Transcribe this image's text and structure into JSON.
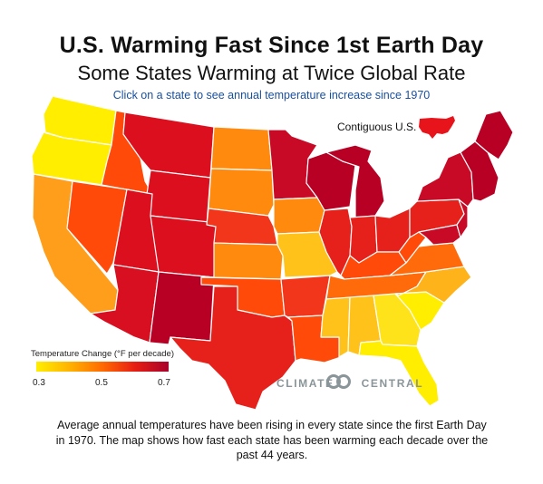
{
  "header": {
    "title": "U.S. Warming Fast Since 1st Earth Day",
    "subtitle": "Some States Warming at Twice Global Rate",
    "instruction": "Click on a state to see annual temperature increase since 1970"
  },
  "map": {
    "inset_label": "Contiguous U.S.",
    "inset_color": "#e8141c",
    "states": [
      {
        "id": "WA",
        "color": "#ffee00"
      },
      {
        "id": "OR",
        "color": "#ffee00"
      },
      {
        "id": "CA",
        "color": "#ff9e1a"
      },
      {
        "id": "ID",
        "color": "#ff4a0a"
      },
      {
        "id": "NV",
        "color": "#ff4a0a"
      },
      {
        "id": "MT",
        "color": "#dc0f1f"
      },
      {
        "id": "WY",
        "color": "#dc0f1f"
      },
      {
        "id": "UT",
        "color": "#dc0f1f"
      },
      {
        "id": "AZ",
        "color": "#d70f20"
      },
      {
        "id": "CO",
        "color": "#dc0f1f"
      },
      {
        "id": "NM",
        "color": "#b70024"
      },
      {
        "id": "ND",
        "color": "#ff8a0d"
      },
      {
        "id": "SD",
        "color": "#ff8a0d"
      },
      {
        "id": "NE",
        "color": "#f2361c"
      },
      {
        "id": "KS",
        "color": "#ff8a0d"
      },
      {
        "id": "OK",
        "color": "#ff4a0a"
      },
      {
        "id": "TX",
        "color": "#e6201a"
      },
      {
        "id": "MN",
        "color": "#c80a26"
      },
      {
        "id": "IA",
        "color": "#ff8a0d"
      },
      {
        "id": "MO",
        "color": "#ffc21a"
      },
      {
        "id": "AR",
        "color": "#f2361c"
      },
      {
        "id": "LA",
        "color": "#ff4a0a"
      },
      {
        "id": "WI",
        "color": "#b70024"
      },
      {
        "id": "IL",
        "color": "#e6201a"
      },
      {
        "id": "MI",
        "color": "#b70024"
      },
      {
        "id": "IN",
        "color": "#e6201a"
      },
      {
        "id": "OH",
        "color": "#e6201a"
      },
      {
        "id": "KY",
        "color": "#ff4a0a"
      },
      {
        "id": "TN",
        "color": "#ff6a0a"
      },
      {
        "id": "MS",
        "color": "#ffc21a"
      },
      {
        "id": "AL",
        "color": "#ffc21a"
      },
      {
        "id": "GA",
        "color": "#ffe31a"
      },
      {
        "id": "FL",
        "color": "#ffee00"
      },
      {
        "id": "SC",
        "color": "#ffee00"
      },
      {
        "id": "NC",
        "color": "#ffb31a"
      },
      {
        "id": "VA",
        "color": "#ff6a0a"
      },
      {
        "id": "WV",
        "color": "#ff4a0a"
      },
      {
        "id": "PA",
        "color": "#e6201a"
      },
      {
        "id": "NY",
        "color": "#c80a26"
      },
      {
        "id": "NE_REGION",
        "color": "#b70024"
      },
      {
        "id": "NJ",
        "color": "#c80a26"
      },
      {
        "id": "MD",
        "color": "#c80a26"
      },
      {
        "id": "ME",
        "color": "#b70024"
      }
    ]
  },
  "legend": {
    "title": "Temperature Change (°F per decade)",
    "ticks": [
      "0.3",
      "0.5",
      "0.7"
    ]
  },
  "branding": {
    "left": "CLIMATE",
    "right": "CENTRAL"
  },
  "caption": "Average annual temperatures have been rising in every state since the first Earth Day in 1970. The map shows how fast each state has been warming each decade over the past 44 years."
}
